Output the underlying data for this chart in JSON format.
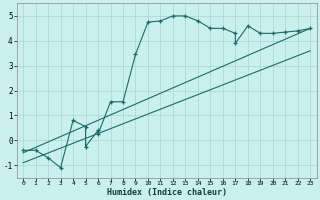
{
  "xlabel": "Humidex (Indice chaleur)",
  "bg_color": "#caf0ee",
  "grid_color": "#b0d8d8",
  "line_color": "#1a6b6b",
  "xlim": [
    -0.5,
    23.5
  ],
  "ylim": [
    -1.5,
    5.5
  ],
  "yticks": [
    -1,
    0,
    1,
    2,
    3,
    4,
    5
  ],
  "xticks": [
    0,
    1,
    2,
    3,
    4,
    5,
    6,
    7,
    8,
    9,
    10,
    11,
    12,
    13,
    14,
    15,
    16,
    17,
    18,
    19,
    20,
    21,
    22,
    23
  ],
  "curve_x": [
    0,
    1,
    2,
    3,
    4,
    5,
    5,
    6,
    6,
    7,
    8,
    9,
    10,
    11,
    12,
    13,
    14,
    15,
    16,
    17,
    17,
    18,
    19,
    20,
    21,
    22,
    23
  ],
  "curve_y": [
    -0.4,
    -0.4,
    -0.7,
    -1.1,
    0.8,
    0.55,
    -0.25,
    0.4,
    0.25,
    1.55,
    1.55,
    3.45,
    4.75,
    4.8,
    5.0,
    5.0,
    4.8,
    4.5,
    4.5,
    4.3,
    3.9,
    4.6,
    4.3,
    4.3,
    4.35,
    4.4,
    4.5
  ],
  "line1_x": [
    0,
    23
  ],
  "line1_y": [
    -0.5,
    4.5
  ],
  "line2_x": [
    0,
    23
  ],
  "line2_y": [
    -0.9,
    3.6
  ]
}
